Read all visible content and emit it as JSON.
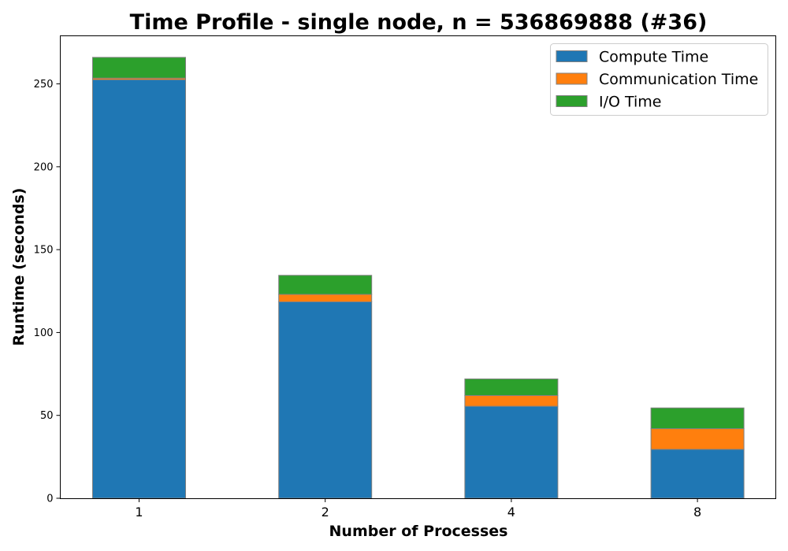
{
  "chart_data": {
    "type": "bar",
    "stacked": true,
    "title": "Time Profile - single node, n = 536869888 (#36)",
    "xlabel": "Number of Processes",
    "ylabel": "Runtime (seconds)",
    "categories": [
      "1",
      "2",
      "4",
      "8"
    ],
    "series": [
      {
        "name": "Compute Time",
        "color": "#1f77b4",
        "values": [
          252.5,
          118.5,
          55.5,
          29.5
        ]
      },
      {
        "name": "Communication Time",
        "color": "#ff7f0e",
        "values": [
          1.0,
          4.5,
          6.5,
          12.5
        ]
      },
      {
        "name": "I/O Time",
        "color": "#2ca02c",
        "values": [
          12.5,
          11.5,
          10.0,
          12.5
        ]
      }
    ],
    "ylim": [
      0,
      279
    ],
    "yticks": [
      0,
      50,
      100,
      150,
      200,
      250
    ],
    "ytick_labels": [
      "0",
      "50",
      "100",
      "150",
      "200",
      "250"
    ],
    "legend_position": "upper right",
    "grid": false,
    "bar_edge_color": "#808080"
  }
}
